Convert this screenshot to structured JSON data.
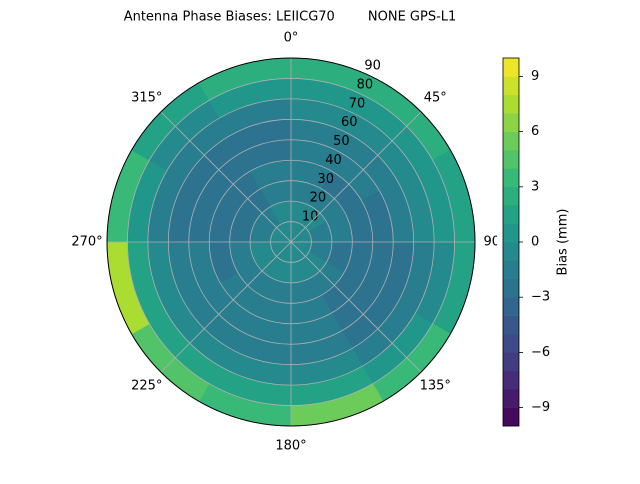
{
  "chart_data": {
    "type": "polar-contour",
    "title": "Antenna Phase Biases: LEIICG70        NONE GPS-L1",
    "colorbar_label": "Bias (mm)",
    "theta_direction": "clockwise",
    "theta_zero": "top",
    "thetaticks": [
      {
        "value": 0,
        "label": "0°"
      },
      {
        "value": 45,
        "label": "45°"
      },
      {
        "value": 90,
        "label": "90°"
      },
      {
        "value": 135,
        "label": "135°"
      },
      {
        "value": 180,
        "label": "180°"
      },
      {
        "value": 225,
        "label": "225°"
      },
      {
        "value": 270,
        "label": "270°"
      },
      {
        "value": 315,
        "label": "315°"
      }
    ],
    "rlim": [
      0,
      90
    ],
    "rticks": [
      10,
      20,
      30,
      40,
      50,
      60,
      70,
      80,
      90
    ],
    "grid": true,
    "colormap": "viridis",
    "clim": [
      -10,
      10
    ],
    "levels": [
      -10,
      -9,
      -8,
      -7,
      -6,
      -5,
      -4,
      -3,
      -2,
      -1,
      0,
      1,
      2,
      3,
      4,
      5,
      6,
      7,
      8,
      9,
      10
    ],
    "cticks": [
      {
        "value": -9,
        "label": "−9"
      },
      {
        "value": -6,
        "label": "−6"
      },
      {
        "value": -3,
        "label": "−3"
      },
      0,
      3,
      6,
      9
    ],
    "r": [
      0,
      10,
      20,
      30,
      40,
      50,
      60,
      70,
      80,
      90
    ],
    "theta": [
      0,
      30,
      60,
      90,
      120,
      150,
      180,
      210,
      240,
      270,
      300,
      330,
      360
    ],
    "values": [
      [
        -1,
        -1,
        -1,
        -1,
        -1,
        -1,
        -1,
        -1,
        -1,
        -1,
        -1,
        -1
      ],
      [
        -1,
        -1,
        -2,
        -2,
        -1,
        -1,
        -1,
        -1,
        -1,
        -2,
        -2,
        -1
      ],
      [
        -2,
        -2,
        -2,
        -3,
        -2,
        -2,
        -2,
        -2,
        -2,
        -3,
        -3,
        -2
      ],
      [
        -2,
        -3,
        -3,
        -3,
        -3,
        -2,
        -2,
        -2,
        -3,
        -3,
        -3,
        -2
      ],
      [
        -2,
        -2,
        -3,
        -3,
        -3,
        -2,
        -2,
        -2,
        -2,
        -3,
        -3,
        -3
      ],
      [
        -2,
        -2,
        -2,
        -3,
        -3,
        -2,
        -2,
        -2,
        -2,
        -3,
        -3,
        -3
      ],
      [
        -1,
        -1,
        -1,
        -2,
        -2,
        -1,
        -1,
        -1,
        -1,
        -2,
        -2,
        -2
      ],
      [
        0,
        0,
        0,
        -1,
        0,
        1,
        1,
        1,
        1,
        0,
        -1,
        0
      ],
      [
        2,
        2,
        1,
        1,
        3,
        5,
        3,
        4,
        7,
        3,
        1,
        2
      ]
    ]
  }
}
